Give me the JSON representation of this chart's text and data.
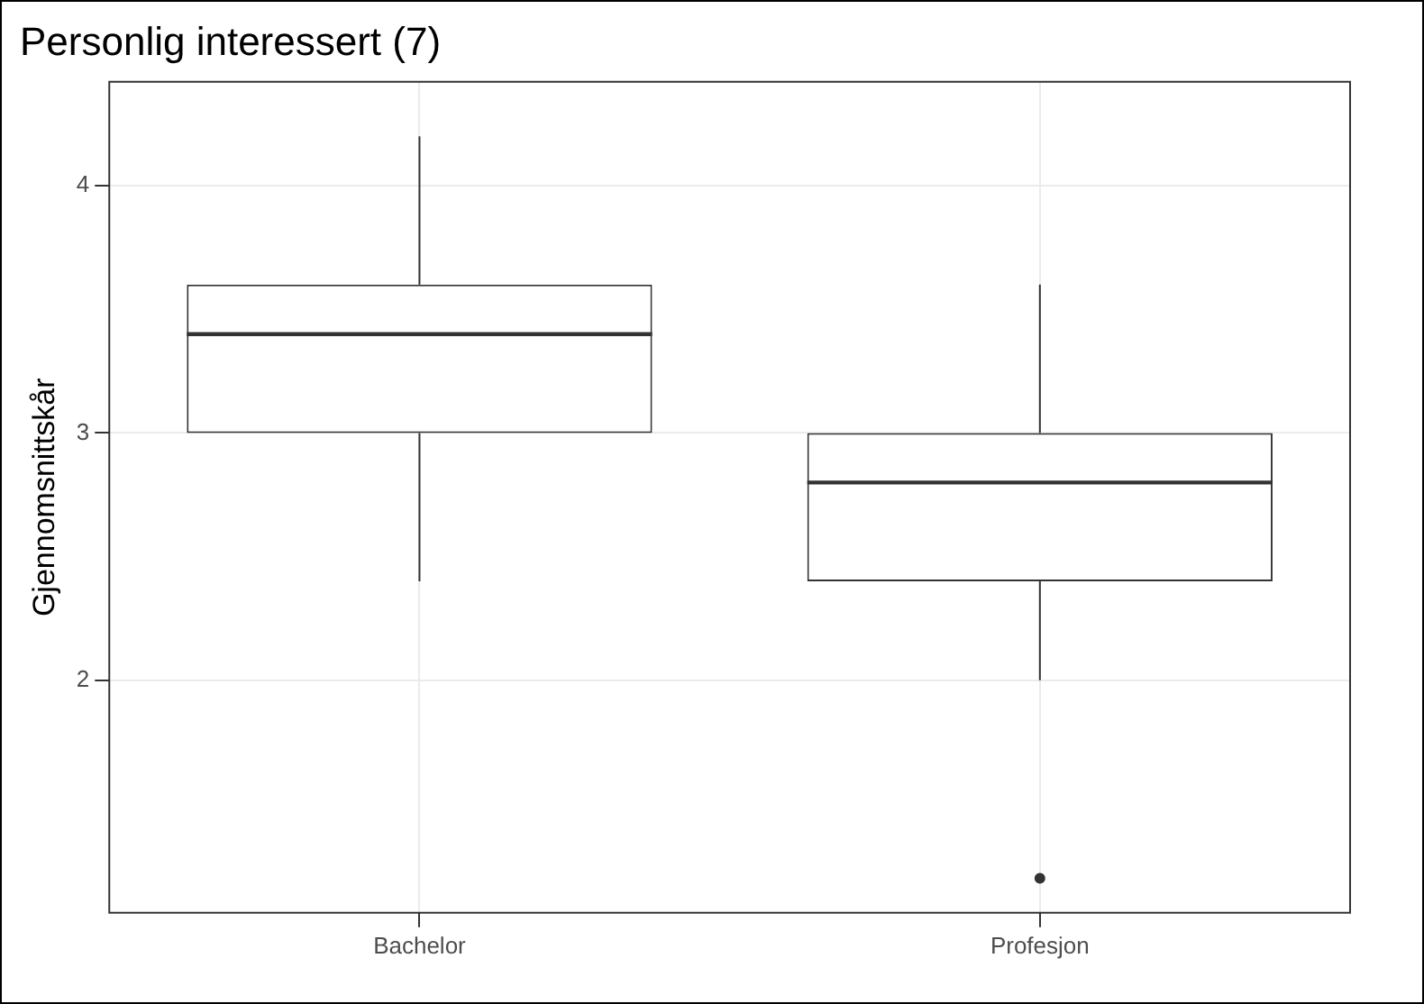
{
  "chart_data": {
    "type": "box",
    "title": "Personlig interessert (7)",
    "ylabel": "Gjennomsnittskår",
    "categories": [
      "Bachelor",
      "Profesjon"
    ],
    "boxes": [
      {
        "low": 2.4,
        "q1": 3.0,
        "median": 3.4,
        "q3": 3.6,
        "high": 4.2
      },
      {
        "low": 2.0,
        "q1": 2.4,
        "median": 2.8,
        "q3": 3.0,
        "high": 3.6,
        "outliers": [
          1.2
        ]
      }
    ],
    "ylim": [
      1.06,
      4.42
    ],
    "yticks": [
      2,
      3,
      4
    ],
    "grid": true
  }
}
